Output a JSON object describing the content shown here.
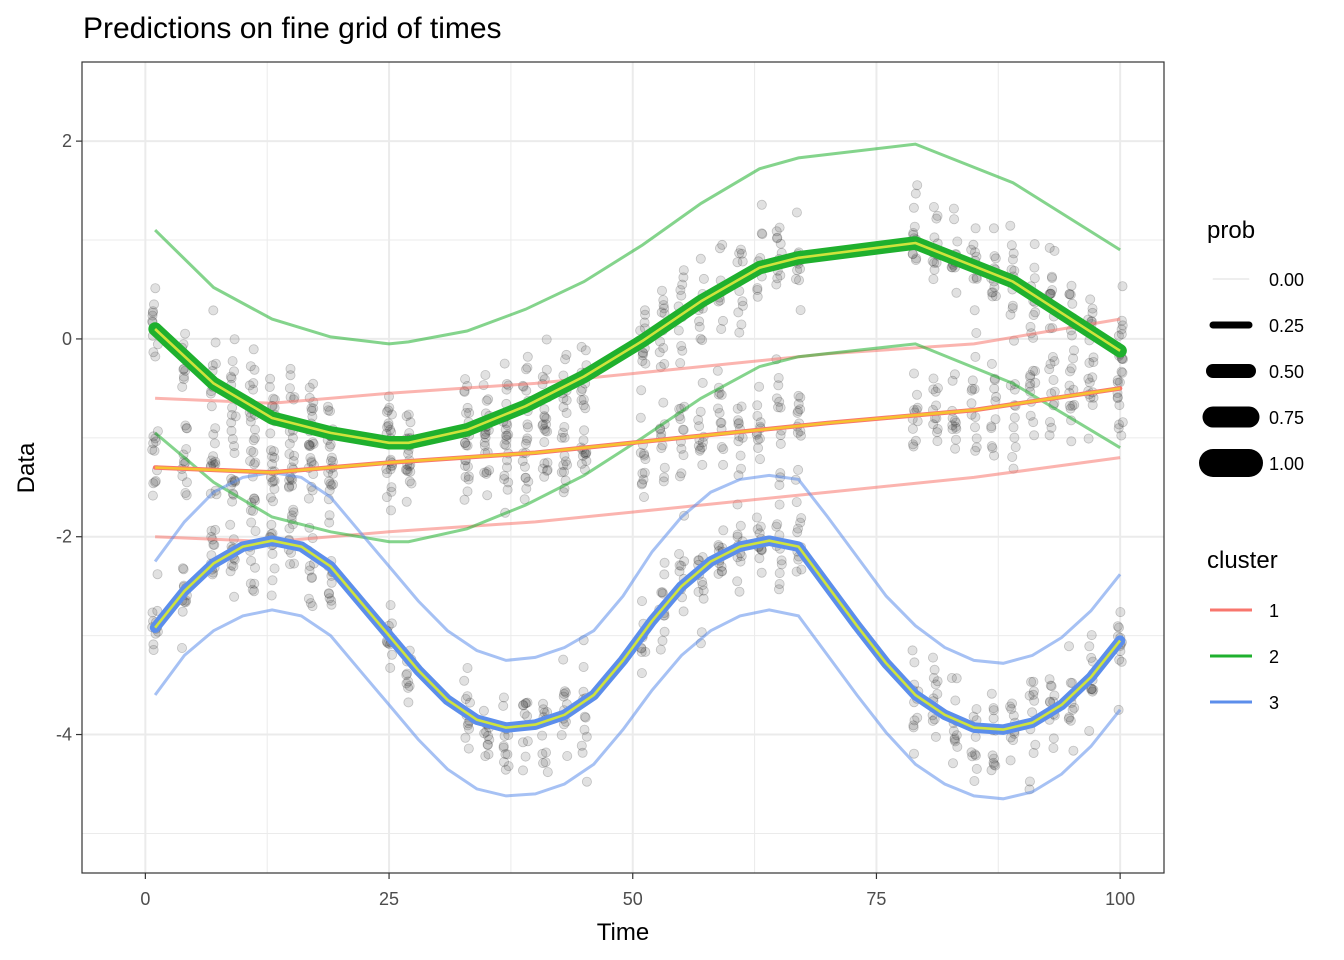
{
  "chart_data": {
    "type": "line",
    "title": "Predictions on fine grid of times",
    "xlabel": "Time",
    "ylabel": "Data",
    "xlim": [
      -6.5,
      104.5
    ],
    "ylim": [
      -5.4,
      2.8
    ],
    "x_ticks": [
      0,
      25,
      50,
      75,
      100
    ],
    "x_tick_labels": [
      "0",
      "25",
      "50",
      "75",
      "100"
    ],
    "y_ticks": [
      -4,
      -2,
      0,
      2
    ],
    "y_tick_labels": [
      "-4",
      "-2",
      "0",
      "2"
    ],
    "grid": true,
    "colors": {
      "cluster_1": "#F8766D",
      "cluster_2": "#1FB02E",
      "cluster_3": "#5C8EEB",
      "prediction": "#CFE33C",
      "prediction_cluster1": "#F6C32E",
      "points": "#333333",
      "panel_border": "#333333",
      "grid": "#EBEBEB"
    },
    "point_times": [
      1,
      4,
      7,
      9,
      11,
      13,
      15,
      17,
      19,
      25,
      27,
      33,
      35,
      37,
      39,
      41,
      43,
      45,
      51,
      53,
      55,
      57,
      59,
      61,
      63,
      65,
      67,
      79,
      81,
      83,
      85,
      87,
      89,
      91,
      93,
      95,
      97,
      100
    ],
    "series": [
      {
        "cluster": "1",
        "x": [
          1,
          13,
          25,
          40,
          55,
          70,
          85,
          100
        ],
        "mean": [
          -1.3,
          -1.35,
          -1.25,
          -1.15,
          -1.0,
          -0.85,
          -0.72,
          -0.5
        ],
        "upper": [
          -0.6,
          -0.65,
          -0.55,
          -0.45,
          -0.3,
          -0.15,
          -0.05,
          0.2
        ],
        "lower": [
          -2.0,
          -2.05,
          -1.95,
          -1.85,
          -1.7,
          -1.55,
          -1.4,
          -1.2
        ],
        "prob": 0.25
      },
      {
        "cluster": "2",
        "x": [
          1,
          7,
          13,
          19,
          25,
          27,
          33,
          39,
          45,
          51,
          57,
          63,
          67,
          79,
          89,
          100
        ],
        "mean": [
          0.1,
          -0.45,
          -0.8,
          -0.95,
          -1.05,
          -1.05,
          -0.92,
          -0.68,
          -0.38,
          -0.02,
          0.38,
          0.72,
          0.82,
          0.97,
          0.58,
          -0.12
        ],
        "upper": [
          1.1,
          0.52,
          0.2,
          0.02,
          -0.05,
          -0.03,
          0.08,
          0.3,
          0.58,
          0.95,
          1.37,
          1.72,
          1.83,
          1.97,
          1.58,
          0.9
        ],
        "lower": [
          -0.95,
          -1.45,
          -1.8,
          -1.95,
          -2.05,
          -2.05,
          -1.92,
          -1.68,
          -1.38,
          -1.0,
          -0.6,
          -0.28,
          -0.18,
          -0.05,
          -0.45,
          -1.1
        ],
        "prob": 1.0
      },
      {
        "cluster": "3",
        "x": [
          1,
          4,
          7,
          10,
          13,
          16,
          19,
          22,
          25,
          28,
          31,
          34,
          37,
          40,
          43,
          46,
          49,
          52,
          55,
          58,
          61,
          64,
          67,
          70,
          73,
          76,
          79,
          82,
          85,
          88,
          91,
          94,
          97,
          100
        ],
        "mean": [
          -2.92,
          -2.55,
          -2.27,
          -2.1,
          -2.04,
          -2.1,
          -2.3,
          -2.65,
          -3.0,
          -3.35,
          -3.65,
          -3.85,
          -3.93,
          -3.9,
          -3.8,
          -3.6,
          -3.25,
          -2.85,
          -2.5,
          -2.25,
          -2.1,
          -2.04,
          -2.1,
          -2.5,
          -2.9,
          -3.28,
          -3.6,
          -3.8,
          -3.93,
          -3.95,
          -3.88,
          -3.7,
          -3.42,
          -3.05
        ],
        "upper": [
          -2.25,
          -1.85,
          -1.55,
          -1.4,
          -1.35,
          -1.4,
          -1.6,
          -1.95,
          -2.3,
          -2.65,
          -2.95,
          -3.15,
          -3.25,
          -3.22,
          -3.12,
          -2.95,
          -2.6,
          -2.15,
          -1.8,
          -1.55,
          -1.42,
          -1.38,
          -1.42,
          -1.8,
          -2.2,
          -2.6,
          -2.9,
          -3.12,
          -3.25,
          -3.28,
          -3.2,
          -3.02,
          -2.75,
          -2.38
        ],
        "lower": [
          -3.6,
          -3.2,
          -2.95,
          -2.8,
          -2.74,
          -2.8,
          -3.0,
          -3.35,
          -3.7,
          -4.05,
          -4.35,
          -4.55,
          -4.62,
          -4.6,
          -4.5,
          -4.3,
          -3.95,
          -3.55,
          -3.2,
          -2.95,
          -2.8,
          -2.74,
          -2.8,
          -3.2,
          -3.6,
          -3.98,
          -4.3,
          -4.5,
          -4.62,
          -4.65,
          -4.58,
          -4.4,
          -4.12,
          -3.75
        ],
        "prob": 0.75
      }
    ],
    "legend": {
      "placement": "right",
      "prob": {
        "title": "prob",
        "levels": [
          {
            "label": "0.00",
            "value": 0.0
          },
          {
            "label": "0.25",
            "value": 0.25
          },
          {
            "label": "0.50",
            "value": 0.5
          },
          {
            "label": "0.75",
            "value": 0.75
          },
          {
            "label": "1.00",
            "value": 1.0
          }
        ]
      },
      "cluster": {
        "title": "cluster",
        "entries": [
          {
            "label": "1",
            "color": "#F8766D"
          },
          {
            "label": "2",
            "color": "#1FB02E"
          },
          {
            "label": "3",
            "color": "#5C8EEB"
          }
        ]
      }
    }
  }
}
